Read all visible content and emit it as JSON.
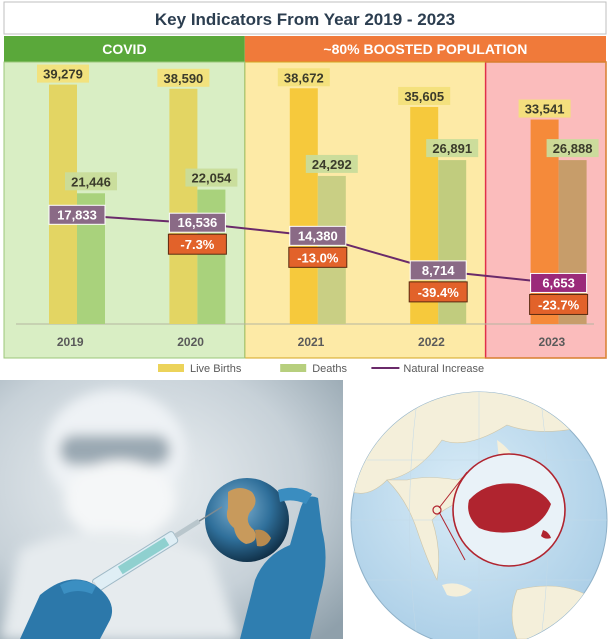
{
  "chart_data": {
    "type": "bar",
    "title": "Key Indicators From Year 2019 - 2023",
    "categories": [
      "2019",
      "2020",
      "2021",
      "2022",
      "2023"
    ],
    "periods": [
      {
        "label": "COVID",
        "from": "2019",
        "to": "2020",
        "header_color": "#5aa83a",
        "band_color": "#d9eec4"
      },
      {
        "label": "~80% BOOSTED POPULATION",
        "from": "2021",
        "to": "2023",
        "header_color": "#f07a3a",
        "band_color": "#fdeaa6"
      }
    ],
    "highlight": {
      "category": "2023",
      "band_color": "#fbbcbc",
      "border_color": "#e0304a"
    },
    "series": [
      {
        "name": "Live Births",
        "type": "bar",
        "color": "#ecd35a",
        "values": [
          39279,
          38590,
          38672,
          35605,
          33541
        ],
        "labels": [
          "39,279",
          "38,590",
          "38,672",
          "35,605",
          "33,541"
        ],
        "bar_colors": [
          "#e3d563",
          "#e3d563",
          "#f6c93c",
          "#f6c93c",
          "#f58a3a"
        ]
      },
      {
        "name": "Deaths",
        "type": "bar",
        "color": "#b7cf7e",
        "values": [
          21446,
          22054,
          24292,
          26891,
          26888
        ],
        "labels": [
          "21,446",
          "22,054",
          "24,292",
          "26,891",
          "26,888"
        ],
        "bar_colors": [
          "#a9d27c",
          "#a9d27c",
          "#c9cf84",
          "#c1cc7e",
          "#c79d6a"
        ]
      },
      {
        "name": "Natural Increase",
        "type": "line",
        "color": "#6a2a6a",
        "values": [
          17833,
          16536,
          14380,
          8714,
          6653
        ],
        "labels": [
          "17,833",
          "16,536",
          "14,380",
          "8,714",
          "6,653"
        ]
      }
    ],
    "changes": [
      {
        "category": "2020",
        "label": "-7.3%"
      },
      {
        "category": "2021",
        "label": "-13.0%"
      },
      {
        "category": "2022",
        "label": "-39.4%"
      },
      {
        "category": "2023",
        "label": "-23.7%"
      }
    ],
    "ylim": [
      0,
      42000
    ],
    "xlabel": "",
    "ylabel": "",
    "grid": false,
    "legend_position": "bottom"
  },
  "images": [
    {
      "name": "scientist-holding-globe-with-syringe-photo",
      "colors": [
        "#b7c2ca",
        "#3d8fb8",
        "#e8edf0"
      ]
    },
    {
      "name": "globe-map-singapore-highlight",
      "colors": [
        "#cfe4f2",
        "#f3eed9",
        "#b0242f"
      ]
    }
  ]
}
